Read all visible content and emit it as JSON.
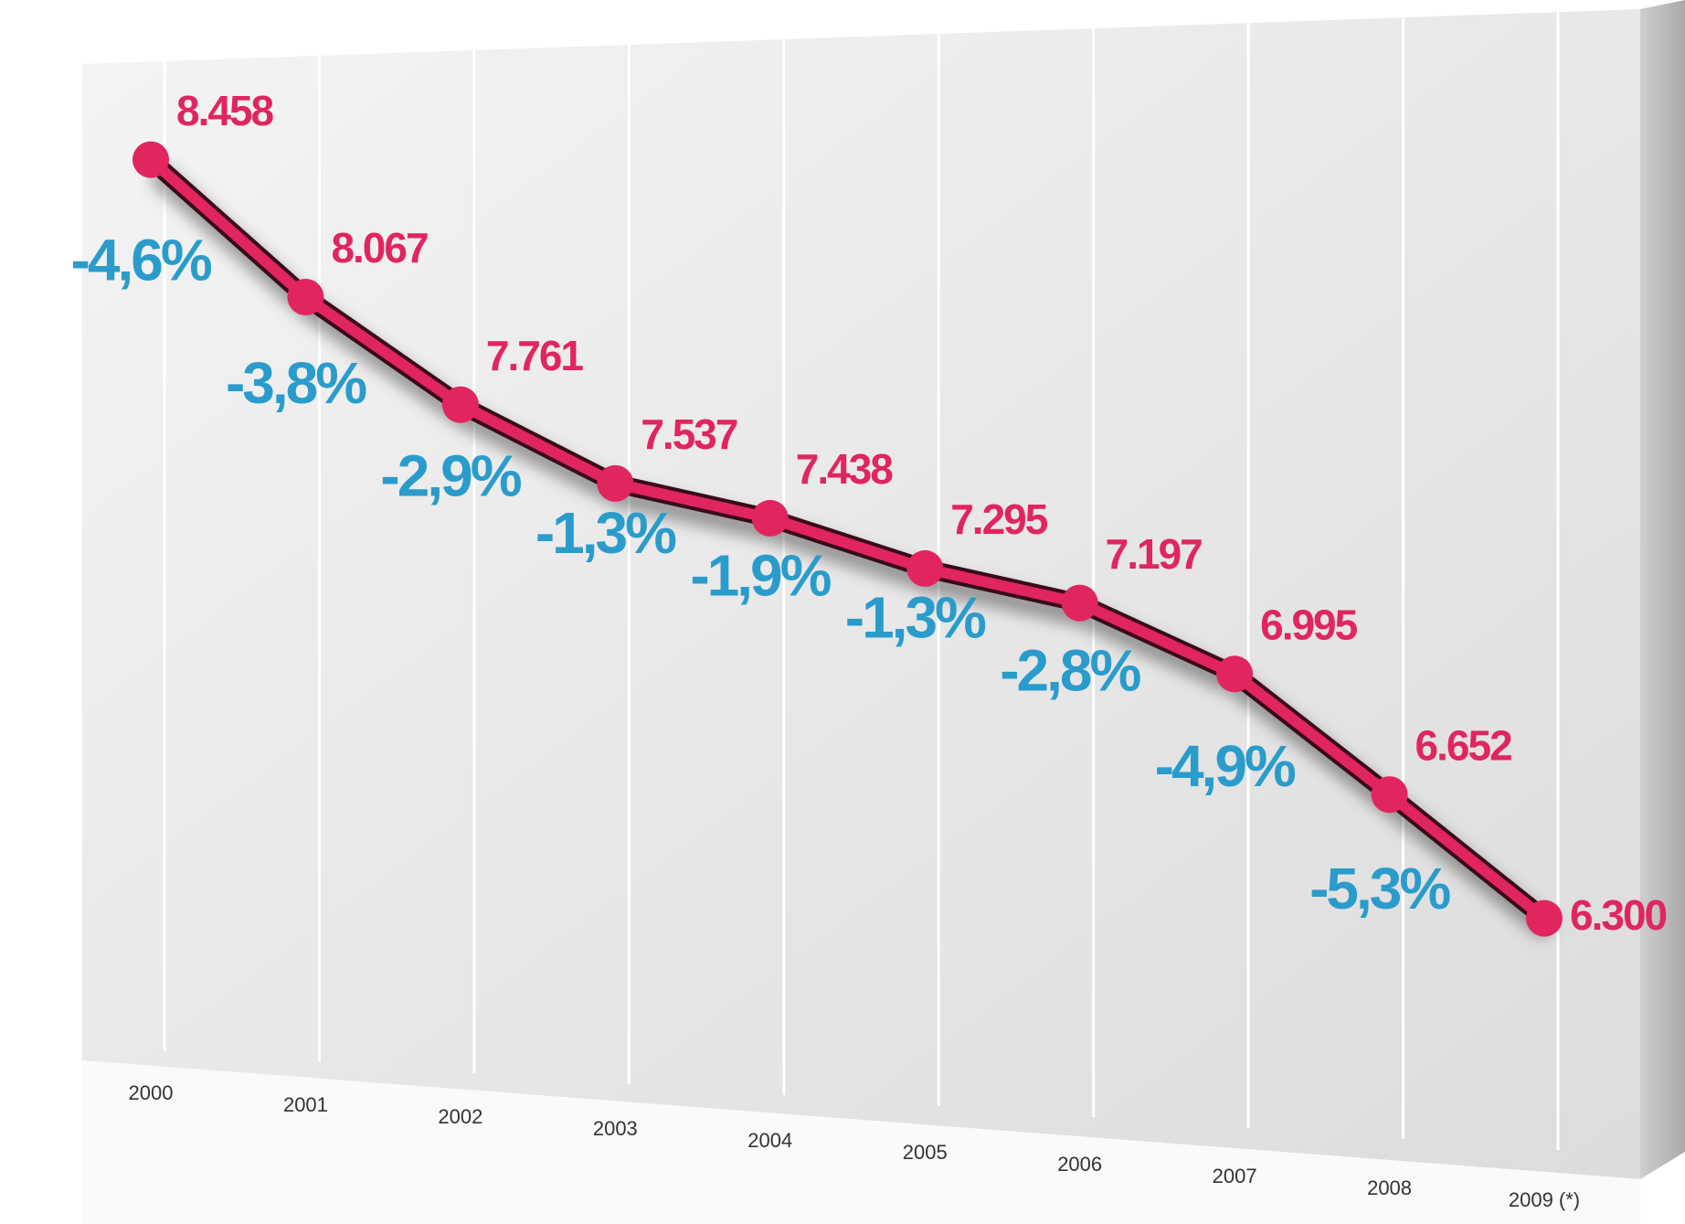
{
  "chart_data": {
    "type": "line",
    "categories": [
      "2000",
      "2001",
      "2002",
      "2003",
      "2004",
      "2005",
      "2006",
      "2007",
      "2008",
      "2009 (*)"
    ],
    "values": [
      8458,
      8067,
      7761,
      7537,
      7438,
      7295,
      7197,
      6995,
      6652,
      6300
    ],
    "value_labels": [
      "8.458",
      "8.067",
      "7.761",
      "7.537",
      "7.438",
      "7.295",
      "7.197",
      "6.995",
      "6.652",
      "6.300"
    ],
    "color": "#e0255f",
    "changes": {
      "values": [
        -4.6,
        -3.8,
        -2.9,
        -1.3,
        -1.9,
        -1.3,
        -2.8,
        -4.9,
        -5.3
      ],
      "value_labels": [
        "-4,6%",
        "-3,8%",
        "-2,9%",
        "-1,3%",
        "-1,9%",
        "-1,3%",
        "-2,8%",
        "-4,9%",
        "-5,3%"
      ],
      "color": "#2a9ccb"
    },
    "ylim": [
      6000,
      8600
    ]
  }
}
